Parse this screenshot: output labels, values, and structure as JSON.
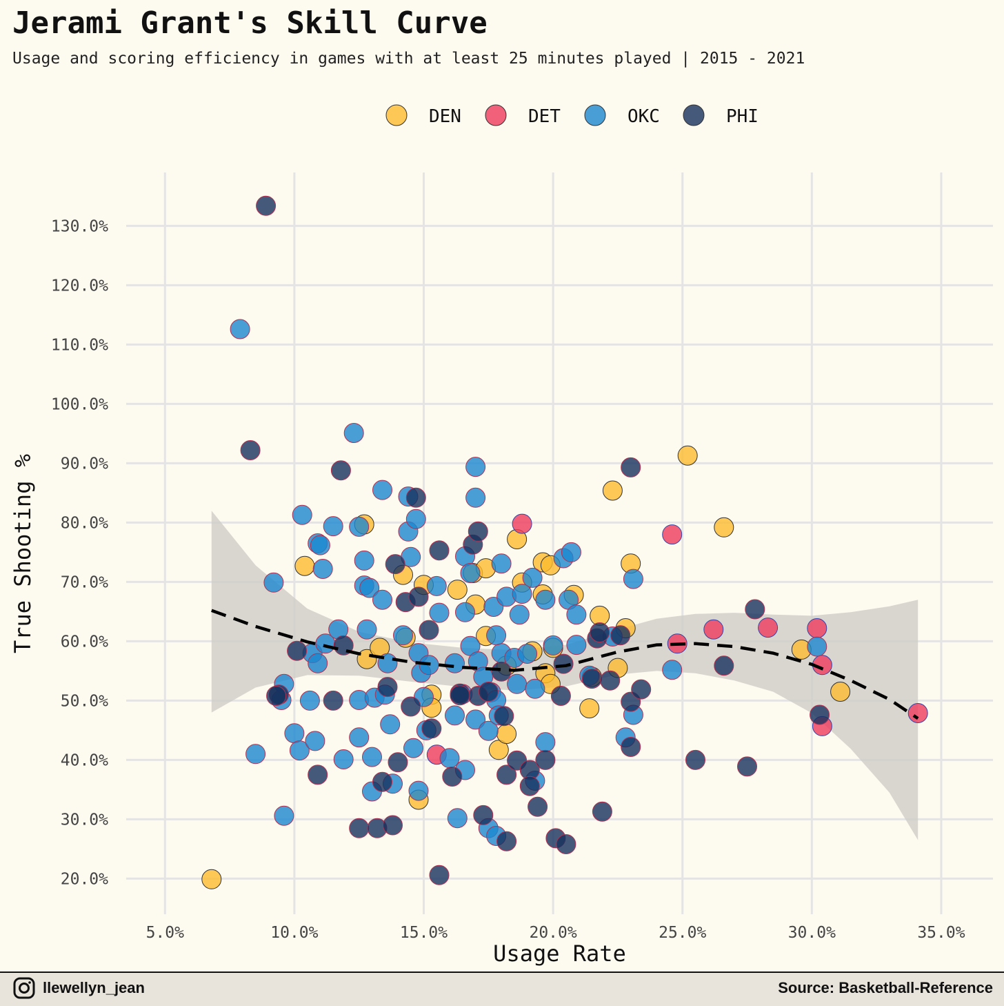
{
  "title": "Jerami Grant's Skill Curve",
  "subtitle": "Usage and scoring efficiency in games with at least 25 minutes played | 2015 - 2021",
  "footer": {
    "handle": "llewellyn_jean",
    "source": "Source: Basketball-Reference",
    "icon": "instagram-icon"
  },
  "chart_data": {
    "type": "scatter",
    "xlabel": "Usage Rate",
    "ylabel": "True Shooting %",
    "xlim": [
      3.5,
      37.0
    ],
    "ylim": [
      14.0,
      139.0
    ],
    "xticks": [
      5,
      10,
      15,
      20,
      25,
      30,
      35
    ],
    "yticks": [
      20,
      30,
      40,
      50,
      60,
      70,
      80,
      90,
      100,
      110,
      120,
      130
    ],
    "x_tick_labels": [
      "5.0%",
      "10.0%",
      "15.0%",
      "20.0%",
      "25.0%",
      "30.0%",
      "35.0%"
    ],
    "y_tick_labels": [
      "20.0%",
      "30.0%",
      "40.0%",
      "50.0%",
      "60.0%",
      "70.0%",
      "80.0%",
      "90.0%",
      "100.0%",
      "110.0%",
      "120.0%",
      "130.0%"
    ],
    "grid": true,
    "legend_position": "top",
    "colors": {
      "DEN": "#fdbb30",
      "DET": "#ef3b5c",
      "OKC": "#1b87d0",
      "PHI": "#16315e",
      "band": "#cfcdc7",
      "trend": "#000000",
      "background": "#fdfaf0",
      "gridline": "#e4e4e4"
    },
    "series": [
      {
        "name": "DEN",
        "points": [
          [
            6.8,
            19.9
          ],
          [
            10.4,
            72.7
          ],
          [
            12.7,
            79.7
          ],
          [
            12.8,
            57.0
          ],
          [
            13.3,
            58.9
          ],
          [
            14.2,
            71.2
          ],
          [
            14.3,
            60.6
          ],
          [
            15.0,
            69.5
          ],
          [
            15.3,
            51.0
          ],
          [
            15.3,
            48.8
          ],
          [
            16.3,
            68.7
          ],
          [
            16.9,
            71.5
          ],
          [
            17.0,
            66.2
          ],
          [
            17.4,
            72.3
          ],
          [
            17.4,
            60.9
          ],
          [
            17.9,
            41.7
          ],
          [
            18.2,
            55.9
          ],
          [
            18.2,
            44.4
          ],
          [
            18.6,
            77.2
          ],
          [
            18.8,
            69.9
          ],
          [
            19.2,
            58.3
          ],
          [
            19.6,
            67.9
          ],
          [
            19.6,
            73.3
          ],
          [
            19.7,
            54.6
          ],
          [
            19.9,
            52.8
          ],
          [
            19.9,
            72.8
          ],
          [
            20.0,
            58.9
          ],
          [
            20.8,
            67.8
          ],
          [
            21.4,
            48.7
          ],
          [
            21.5,
            54.0
          ],
          [
            21.8,
            64.3
          ],
          [
            22.3,
            85.4
          ],
          [
            22.5,
            55.5
          ],
          [
            22.8,
            62.2
          ],
          [
            23.0,
            73.1
          ],
          [
            25.2,
            91.3
          ],
          [
            26.6,
            79.2
          ],
          [
            29.6,
            58.6
          ],
          [
            31.1,
            51.5
          ],
          [
            14.8,
            33.3
          ]
        ]
      },
      {
        "name": "DET",
        "points": [
          [
            18.8,
            79.8
          ],
          [
            24.6,
            78.0
          ],
          [
            15.5,
            40.9
          ],
          [
            24.8,
            59.6
          ],
          [
            26.2,
            62.0
          ],
          [
            28.3,
            62.3
          ],
          [
            30.2,
            62.2
          ],
          [
            30.4,
            56.0
          ],
          [
            30.4,
            45.7
          ],
          [
            34.1,
            47.9
          ]
        ]
      },
      {
        "name": "OKC",
        "points": [
          [
            7.9,
            112.6
          ],
          [
            9.2,
            69.9
          ],
          [
            9.5,
            50.1
          ],
          [
            9.6,
            52.8
          ],
          [
            9.6,
            30.6
          ],
          [
            8.5,
            41.0
          ],
          [
            10.0,
            44.5
          ],
          [
            10.2,
            41.6
          ],
          [
            10.3,
            81.3
          ],
          [
            10.6,
            50.0
          ],
          [
            10.7,
            58.0
          ],
          [
            10.8,
            43.2
          ],
          [
            10.9,
            56.3
          ],
          [
            10.9,
            76.5
          ],
          [
            11.0,
            76.2
          ],
          [
            11.1,
            72.2
          ],
          [
            11.2,
            59.6
          ],
          [
            11.5,
            79.4
          ],
          [
            11.7,
            62.0
          ],
          [
            11.9,
            40.1
          ],
          [
            12.3,
            95.1
          ],
          [
            12.5,
            79.3
          ],
          [
            12.5,
            50.1
          ],
          [
            12.5,
            43.8
          ],
          [
            12.7,
            69.4
          ],
          [
            12.7,
            73.6
          ],
          [
            12.8,
            62.0
          ],
          [
            12.9,
            69.0
          ],
          [
            13.0,
            34.7
          ],
          [
            13.0,
            40.5
          ],
          [
            13.1,
            50.5
          ],
          [
            13.4,
            85.5
          ],
          [
            13.4,
            67.0
          ],
          [
            13.5,
            51.0
          ],
          [
            13.6,
            56.3
          ],
          [
            13.7,
            46.0
          ],
          [
            13.8,
            36.0
          ],
          [
            14.2,
            61.0
          ],
          [
            14.4,
            84.4
          ],
          [
            14.4,
            78.5
          ],
          [
            14.5,
            74.2
          ],
          [
            14.6,
            42.0
          ],
          [
            14.7,
            80.6
          ],
          [
            14.8,
            58.0
          ],
          [
            14.8,
            34.8
          ],
          [
            14.9,
            54.7
          ],
          [
            15.0,
            50.6
          ],
          [
            15.1,
            45.0
          ],
          [
            15.2,
            56.0
          ],
          [
            15.5,
            69.3
          ],
          [
            15.6,
            64.8
          ],
          [
            16.0,
            40.3
          ],
          [
            16.2,
            56.3
          ],
          [
            16.2,
            47.5
          ],
          [
            16.3,
            30.2
          ],
          [
            16.5,
            51.1
          ],
          [
            16.6,
            74.3
          ],
          [
            16.6,
            64.9
          ],
          [
            16.6,
            38.3
          ],
          [
            16.8,
            59.2
          ],
          [
            16.8,
            71.5
          ],
          [
            17.0,
            89.4
          ],
          [
            17.0,
            84.2
          ],
          [
            17.0,
            46.8
          ],
          [
            17.1,
            56.6
          ],
          [
            17.3,
            54.0
          ],
          [
            17.5,
            44.9
          ],
          [
            17.5,
            28.5
          ],
          [
            17.6,
            51.4
          ],
          [
            17.7,
            65.8
          ],
          [
            17.8,
            27.2
          ],
          [
            17.8,
            50.1
          ],
          [
            17.9,
            47.5
          ],
          [
            18.0,
            58.0
          ],
          [
            18.0,
            73.1
          ],
          [
            18.2,
            67.5
          ],
          [
            18.5,
            57.2
          ],
          [
            18.6,
            52.8
          ],
          [
            18.7,
            64.5
          ],
          [
            18.8,
            68.0
          ],
          [
            19.0,
            57.9
          ],
          [
            19.2,
            70.7
          ],
          [
            19.3,
            36.5
          ],
          [
            19.7,
            67.0
          ],
          [
            19.7,
            43.0
          ],
          [
            20.0,
            59.3
          ],
          [
            20.4,
            74.0
          ],
          [
            20.6,
            67.0
          ],
          [
            20.7,
            75.0
          ],
          [
            20.9,
            64.5
          ],
          [
            20.9,
            59.4
          ],
          [
            21.4,
            54.2
          ],
          [
            22.3,
            60.8
          ],
          [
            22.8,
            43.8
          ],
          [
            23.1,
            70.5
          ],
          [
            23.1,
            47.6
          ],
          [
            24.6,
            55.2
          ],
          [
            30.2,
            59.1
          ],
          [
            17.8,
            61.0
          ],
          [
            19.3,
            52.0
          ]
        ]
      },
      {
        "name": "PHI",
        "points": [
          [
            8.9,
            133.4
          ],
          [
            8.3,
            92.2
          ],
          [
            9.4,
            51.0
          ],
          [
            9.3,
            50.8
          ],
          [
            10.1,
            58.4
          ],
          [
            10.9,
            37.5
          ],
          [
            11.5,
            50.0
          ],
          [
            11.8,
            88.8
          ],
          [
            11.9,
            59.3
          ],
          [
            12.5,
            28.5
          ],
          [
            13.2,
            28.5
          ],
          [
            13.4,
            36.3
          ],
          [
            13.6,
            52.3
          ],
          [
            13.8,
            29.0
          ],
          [
            13.9,
            73.0
          ],
          [
            14.0,
            39.6
          ],
          [
            14.3,
            66.6
          ],
          [
            14.5,
            49.0
          ],
          [
            14.7,
            84.2
          ],
          [
            14.8,
            67.5
          ],
          [
            15.2,
            61.9
          ],
          [
            15.3,
            45.3
          ],
          [
            15.6,
            20.6
          ],
          [
            15.6,
            75.3
          ],
          [
            16.1,
            37.2
          ],
          [
            16.4,
            51.2
          ],
          [
            16.9,
            76.3
          ],
          [
            17.1,
            50.8
          ],
          [
            17.1,
            78.5
          ],
          [
            17.3,
            30.7
          ],
          [
            17.5,
            51.5
          ],
          [
            18.0,
            54.9
          ],
          [
            18.1,
            47.4
          ],
          [
            18.2,
            26.3
          ],
          [
            18.2,
            37.5
          ],
          [
            18.6,
            39.9
          ],
          [
            19.1,
            38.3
          ],
          [
            19.1,
            35.6
          ],
          [
            19.4,
            32.1
          ],
          [
            19.7,
            40.0
          ],
          [
            20.1,
            26.8
          ],
          [
            20.3,
            50.8
          ],
          [
            20.4,
            56.2
          ],
          [
            20.5,
            25.8
          ],
          [
            21.5,
            53.7
          ],
          [
            21.7,
            60.5
          ],
          [
            21.8,
            61.5
          ],
          [
            21.9,
            31.3
          ],
          [
            22.2,
            53.4
          ],
          [
            22.6,
            61.0
          ],
          [
            23.0,
            89.3
          ],
          [
            23.0,
            49.8
          ],
          [
            23.0,
            42.2
          ],
          [
            23.4,
            51.9
          ],
          [
            25.5,
            40.0
          ],
          [
            26.6,
            55.9
          ],
          [
            27.5,
            38.9
          ],
          [
            27.8,
            65.4
          ],
          [
            30.3,
            47.6
          ],
          [
            16.4,
            50.9
          ]
        ]
      }
    ],
    "trend": {
      "x": [
        6.8,
        8.5,
        10.5,
        12.5,
        14.5,
        16.5,
        18.5,
        20.5,
        22.5,
        24.0,
        25.5,
        27.0,
        28.5,
        30.0,
        31.5,
        33.0,
        34.1
      ],
      "y": [
        65.2,
        62.5,
        59.9,
        57.9,
        56.5,
        55.6,
        55.1,
        55.9,
        58.2,
        59.4,
        59.6,
        59.1,
        58.0,
        56.1,
        53.4,
        50.2,
        47.0
      ],
      "band_upper": [
        82.0,
        72.8,
        65.5,
        61.6,
        59.8,
        58.9,
        58.5,
        59.4,
        62.0,
        63.8,
        64.6,
        64.8,
        64.5,
        64.3,
        64.9,
        65.9,
        67.0
      ],
      "band_lower": [
        48.0,
        52.2,
        54.3,
        54.2,
        53.2,
        52.3,
        51.7,
        52.4,
        54.4,
        55.0,
        54.6,
        53.4,
        51.5,
        47.9,
        41.9,
        34.5,
        26.5
      ]
    }
  }
}
